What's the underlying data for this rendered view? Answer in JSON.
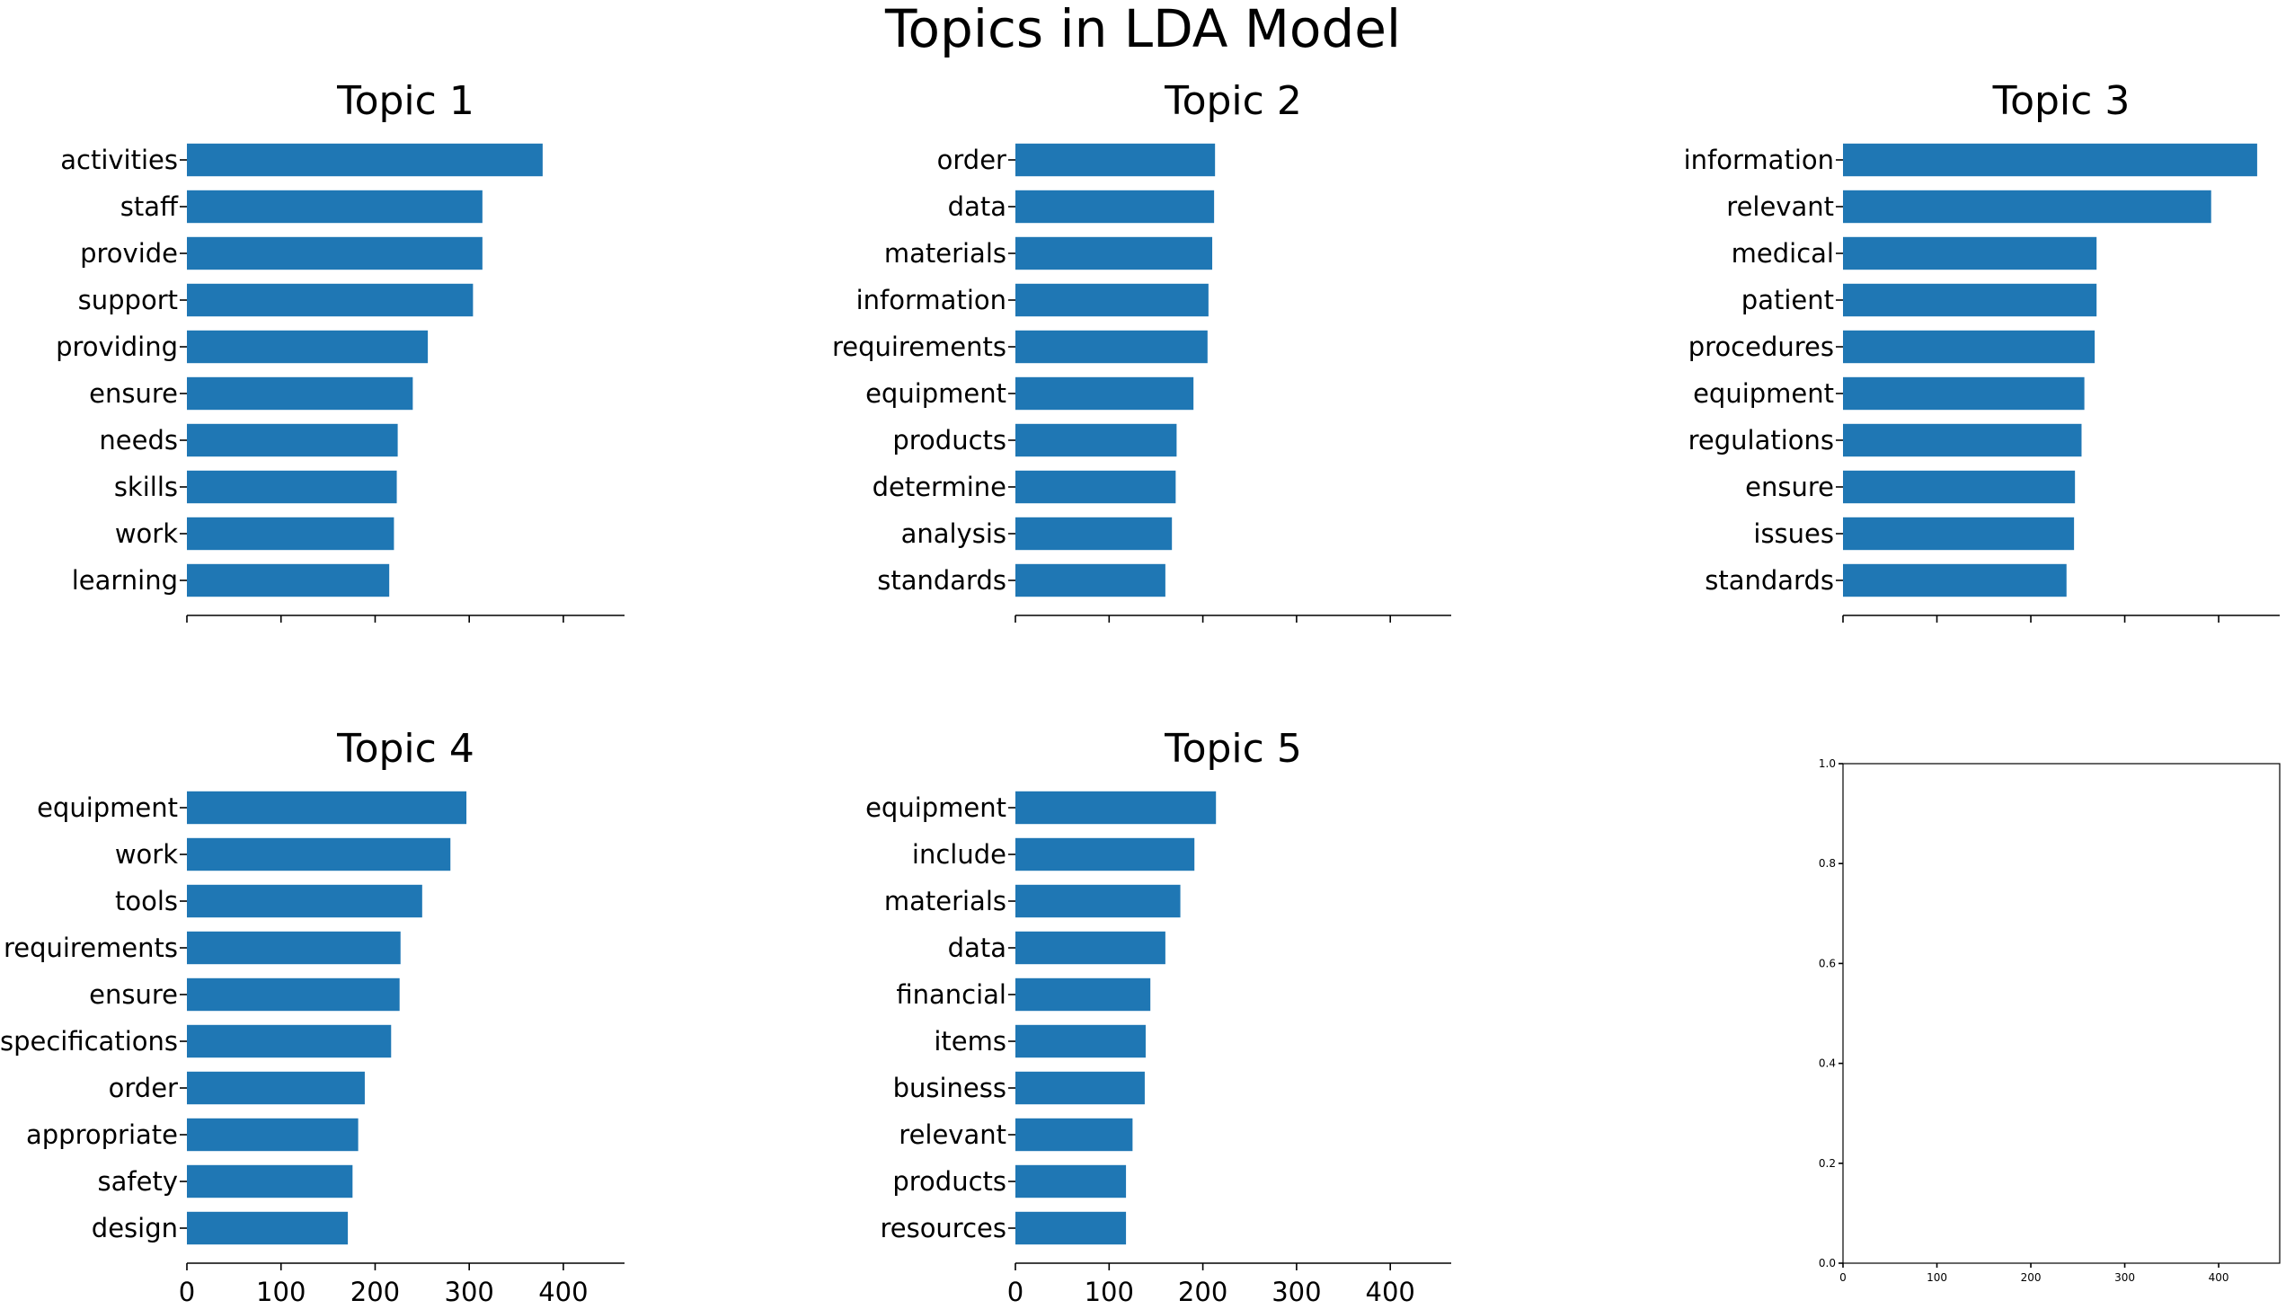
{
  "title": "Topics in LDA Model",
  "chart_data": [
    {
      "type": "bar",
      "orientation": "horizontal",
      "title": "Topic 1",
      "categories": [
        "activities",
        "staff",
        "provide",
        "support",
        "providing",
        "ensure",
        "needs",
        "skills",
        "work",
        "learning"
      ],
      "values": [
        378,
        314,
        314,
        304,
        256,
        240,
        224,
        223,
        220,
        215
      ],
      "xlim": [
        0,
        465
      ],
      "xticks": [
        0,
        100,
        200,
        300,
        400
      ],
      "show_xtick_labels": false
    },
    {
      "type": "bar",
      "orientation": "horizontal",
      "title": "Topic 2",
      "categories": [
        "order",
        "data",
        "materials",
        "information",
        "requirements",
        "equipment",
        "products",
        "determine",
        "analysis",
        "standards"
      ],
      "values": [
        213,
        212,
        210,
        206,
        205,
        190,
        172,
        171,
        167,
        160
      ],
      "xlim": [
        0,
        465
      ],
      "xticks": [
        0,
        100,
        200,
        300,
        400
      ],
      "show_xtick_labels": false
    },
    {
      "type": "bar",
      "orientation": "horizontal",
      "title": "Topic 3",
      "categories": [
        "information",
        "relevant",
        "medical",
        "patient",
        "procedures",
        "equipment",
        "regulations",
        "ensure",
        "issues",
        "standards"
      ],
      "values": [
        441,
        392,
        270,
        270,
        268,
        257,
        254,
        247,
        246,
        238
      ],
      "xlim": [
        0,
        465
      ],
      "xticks": [
        0,
        100,
        200,
        300,
        400
      ],
      "show_xtick_labels": false
    },
    {
      "type": "bar",
      "orientation": "horizontal",
      "title": "Topic 4",
      "categories": [
        "equipment",
        "work",
        "tools",
        "requirements",
        "ensure",
        "specifications",
        "order",
        "appropriate",
        "safety",
        "design"
      ],
      "values": [
        297,
        280,
        250,
        227,
        226,
        217,
        189,
        182,
        176,
        171
      ],
      "xlim": [
        0,
        465
      ],
      "xticks": [
        0,
        100,
        200,
        300,
        400
      ],
      "xtick_labels": [
        "0",
        "100",
        "200",
        "300",
        "400"
      ],
      "show_xtick_labels": true
    },
    {
      "type": "bar",
      "orientation": "horizontal",
      "title": "Topic 5",
      "categories": [
        "equipment",
        "include",
        "materials",
        "data",
        "financial",
        "items",
        "business",
        "relevant",
        "products",
        "resources"
      ],
      "values": [
        214,
        191,
        176,
        160,
        144,
        139,
        138,
        125,
        118,
        118
      ],
      "xlim": [
        0,
        465
      ],
      "xticks": [
        0,
        100,
        200,
        300,
        400
      ],
      "xtick_labels": [
        "0",
        "100",
        "200",
        "300",
        "400"
      ],
      "show_xtick_labels": true
    },
    {
      "type": "empty",
      "title": "",
      "xlim": [
        0,
        465
      ],
      "ylim": [
        0,
        1
      ],
      "xticks": [
        0,
        100,
        200,
        300,
        400
      ],
      "xtick_labels": [
        "0",
        "100",
        "200",
        "300",
        "400"
      ],
      "yticks": [
        0.0,
        0.2,
        0.4,
        0.6,
        0.8,
        1.0
      ],
      "ytick_labels": [
        "0.0",
        "0.2",
        "0.4",
        "0.6",
        "0.8",
        "1.0"
      ]
    }
  ]
}
